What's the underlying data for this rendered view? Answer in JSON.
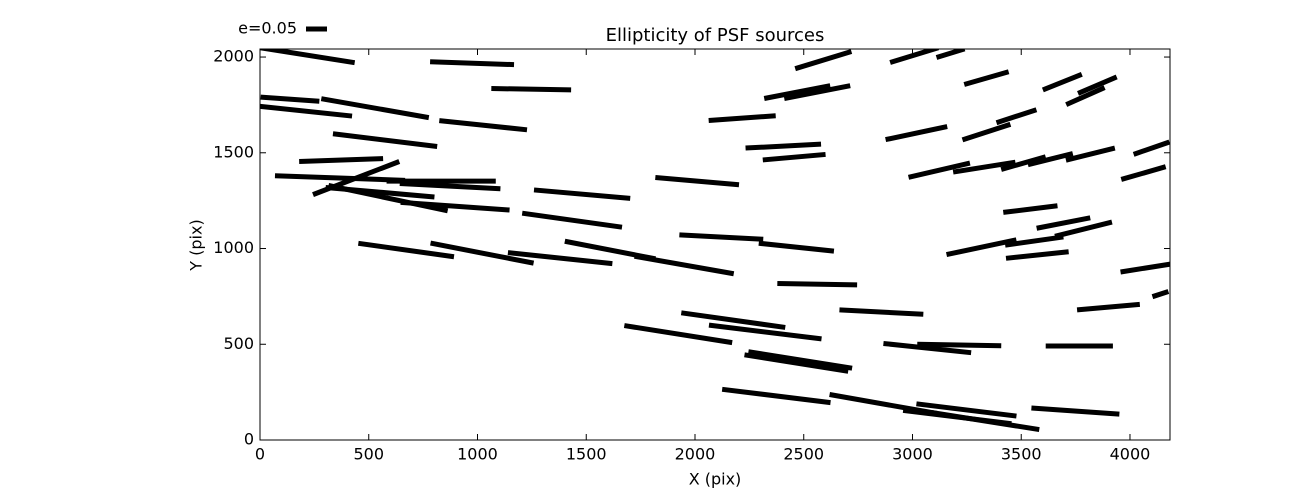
{
  "chart_data": {
    "type": "whisker",
    "title": "Ellipticity of PSF sources",
    "xlabel": "X (pix)",
    "ylabel": "Y (pix)",
    "xlim": [
      0,
      4184
    ],
    "ylim": [
      0,
      2042
    ],
    "xticks": [
      0,
      500,
      1000,
      1500,
      2000,
      2500,
      3000,
      3500,
      4000
    ],
    "yticks": [
      0,
      500,
      1000,
      1500,
      2000
    ],
    "color": "#000000",
    "key": {
      "label": "e=0.05",
      "value": 0.05
    },
    "x": [
      216,
      975,
      138,
      529,
      212,
      1247,
      1026,
      575,
      373,
      368,
      442,
      833,
      874,
      552,
      589,
      897,
      1481,
      1435,
      2010,
      672,
      1021,
      1380,
      1610,
      1950,
      2121,
      2466,
      2217,
      2470,
      2562,
      2590,
      2406,
      2456,
      2562,
      1923,
      2176,
      2323,
      2466,
      2484,
      2857,
      3068,
      3215,
      3767,
      2374,
      2866,
      3206,
      3335,
      3248,
      3749,
      3018,
      3008,
      3175,
      3340,
      3340,
      3478,
      3689,
      3850,
      3795,
      3123,
      3330,
      3510,
      3634,
      3818,
      4099,
      4062,
      3542,
      3694,
      3786,
      3317,
      3560,
      3574,
      4071,
      3901,
      4140
    ],
    "y": [
      2010,
      1968,
      1780,
      1733,
      1717,
      1832,
      1644,
      1566,
      1462,
      1368,
      1368,
      1352,
      1326,
      1294,
      1263,
      1221,
      1284,
      1148,
      1352,
      992,
      976,
      950,
      992,
      914,
      1060,
      1007,
      1681,
      1817,
      1817,
      1984,
      1535,
      1477,
      814,
      553,
      626,
      564,
      402,
      418,
      668,
      480,
      496,
      491,
      230,
      188,
      120,
      99,
      157,
      151,
      1603,
      2010,
      2020,
      1890,
      1608,
      1691,
      1869,
      1853,
      1796,
      1409,
      1425,
      1446,
      1467,
      1493,
      1524,
      1394,
      1206,
      1133,
      1101,
      1007,
      1039,
      966,
      898,
      694,
      762
    ],
    "values": [
      0.23,
      0.2,
      0.14,
      0.26,
      0.22,
      0.19,
      0.21,
      0.25,
      0.2,
      0.31,
      0.22,
      0.26,
      0.24,
      0.26,
      0.29,
      0.26,
      0.23,
      0.24,
      0.2,
      0.23,
      0.25,
      0.25,
      0.22,
      0.24,
      0.2,
      0.18,
      0.16,
      0.16,
      0.16,
      0.14,
      0.18,
      0.15,
      0.19,
      0.26,
      0.25,
      0.27,
      0.25,
      0.25,
      0.2,
      0.21,
      0.2,
      0.16,
      0.26,
      0.26,
      0.26,
      0.26,
      0.24,
      0.21,
      0.15,
      0.12,
      0.07,
      0.11,
      0.12,
      0.1,
      0.1,
      0.1,
      0.1,
      0.15,
      0.15,
      0.11,
      0.11,
      0.12,
      0.09,
      0.11,
      0.13,
      0.13,
      0.14,
      0.17,
      0.14,
      0.15,
      0.12,
      0.15,
      0.04
    ],
    "angle": [
      -9,
      -2,
      -4,
      -10,
      -6,
      -1,
      -6,
      -7,
      2,
      -2,
      21,
      0,
      -3,
      -5,
      -12,
      -4,
      -5,
      -8,
      -5,
      -8,
      -11,
      -6,
      -11,
      -10,
      -3,
      -6,
      4,
      11,
      11,
      17,
      3,
      5,
      -1,
      -9,
      -8,
      -7,
      -9,
      -9,
      -3,
      -6,
      -1,
      0,
      -7,
      -10,
      -7,
      -9,
      -7,
      -4,
      12,
      17,
      17,
      16,
      18,
      18,
      22,
      23,
      24,
      13,
      9,
      16,
      14,
      14,
      19,
      16,
      7,
      11,
      14,
      12,
      8,
      6,
      9,
      5,
      18
    ]
  }
}
